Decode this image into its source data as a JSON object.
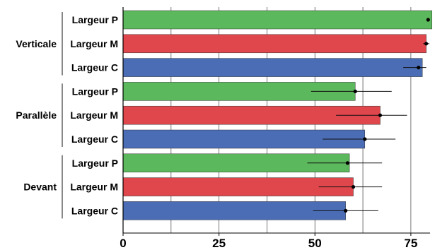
{
  "chart_data": {
    "type": "bar",
    "orientation": "horizontal",
    "xlim": [
      0,
      80
    ],
    "x_ticks": [
      0,
      25,
      50,
      75
    ],
    "grid": true,
    "groups": [
      {
        "name": "Verticale",
        "bars": [
          {
            "label": "Largeur P",
            "value": 80.5,
            "point": 79.5,
            "err_low": 79.5,
            "err_high": 79.5,
            "color": "#5cb85c"
          },
          {
            "label": "Largeur M",
            "value": 79.0,
            "point": 79.0,
            "err_low": 78.2,
            "err_high": 79.8,
            "color": "#e0474c"
          },
          {
            "label": "Largeur C",
            "value": 78.0,
            "point": 77.0,
            "err_low": 73.0,
            "err_high": 79.0,
            "color": "#4a6db5"
          }
        ]
      },
      {
        "name": "Parallèle",
        "bars": [
          {
            "label": "Largeur P",
            "value": 60.5,
            "point": 60.5,
            "err_low": 49.0,
            "err_high": 70.0,
            "color": "#5cb85c"
          },
          {
            "label": "Largeur M",
            "value": 67.0,
            "point": 67.0,
            "err_low": 55.5,
            "err_high": 74.0,
            "color": "#e0474c"
          },
          {
            "label": "Largeur C",
            "value": 63.0,
            "point": 63.0,
            "err_low": 52.0,
            "err_high": 71.0,
            "color": "#4a6db5"
          }
        ]
      },
      {
        "name": "Devant",
        "bars": [
          {
            "label": "Largeur P",
            "value": 59.0,
            "point": 58.5,
            "err_low": 48.0,
            "err_high": 67.5,
            "color": "#5cb85c"
          },
          {
            "label": "Largeur M",
            "value": 60.0,
            "point": 60.0,
            "err_low": 51.0,
            "err_high": 67.5,
            "color": "#e0474c"
          },
          {
            "label": "Largeur C",
            "value": 58.0,
            "point": 58.0,
            "err_low": 49.5,
            "err_high": 66.5,
            "color": "#4a6db5"
          }
        ]
      }
    ]
  }
}
